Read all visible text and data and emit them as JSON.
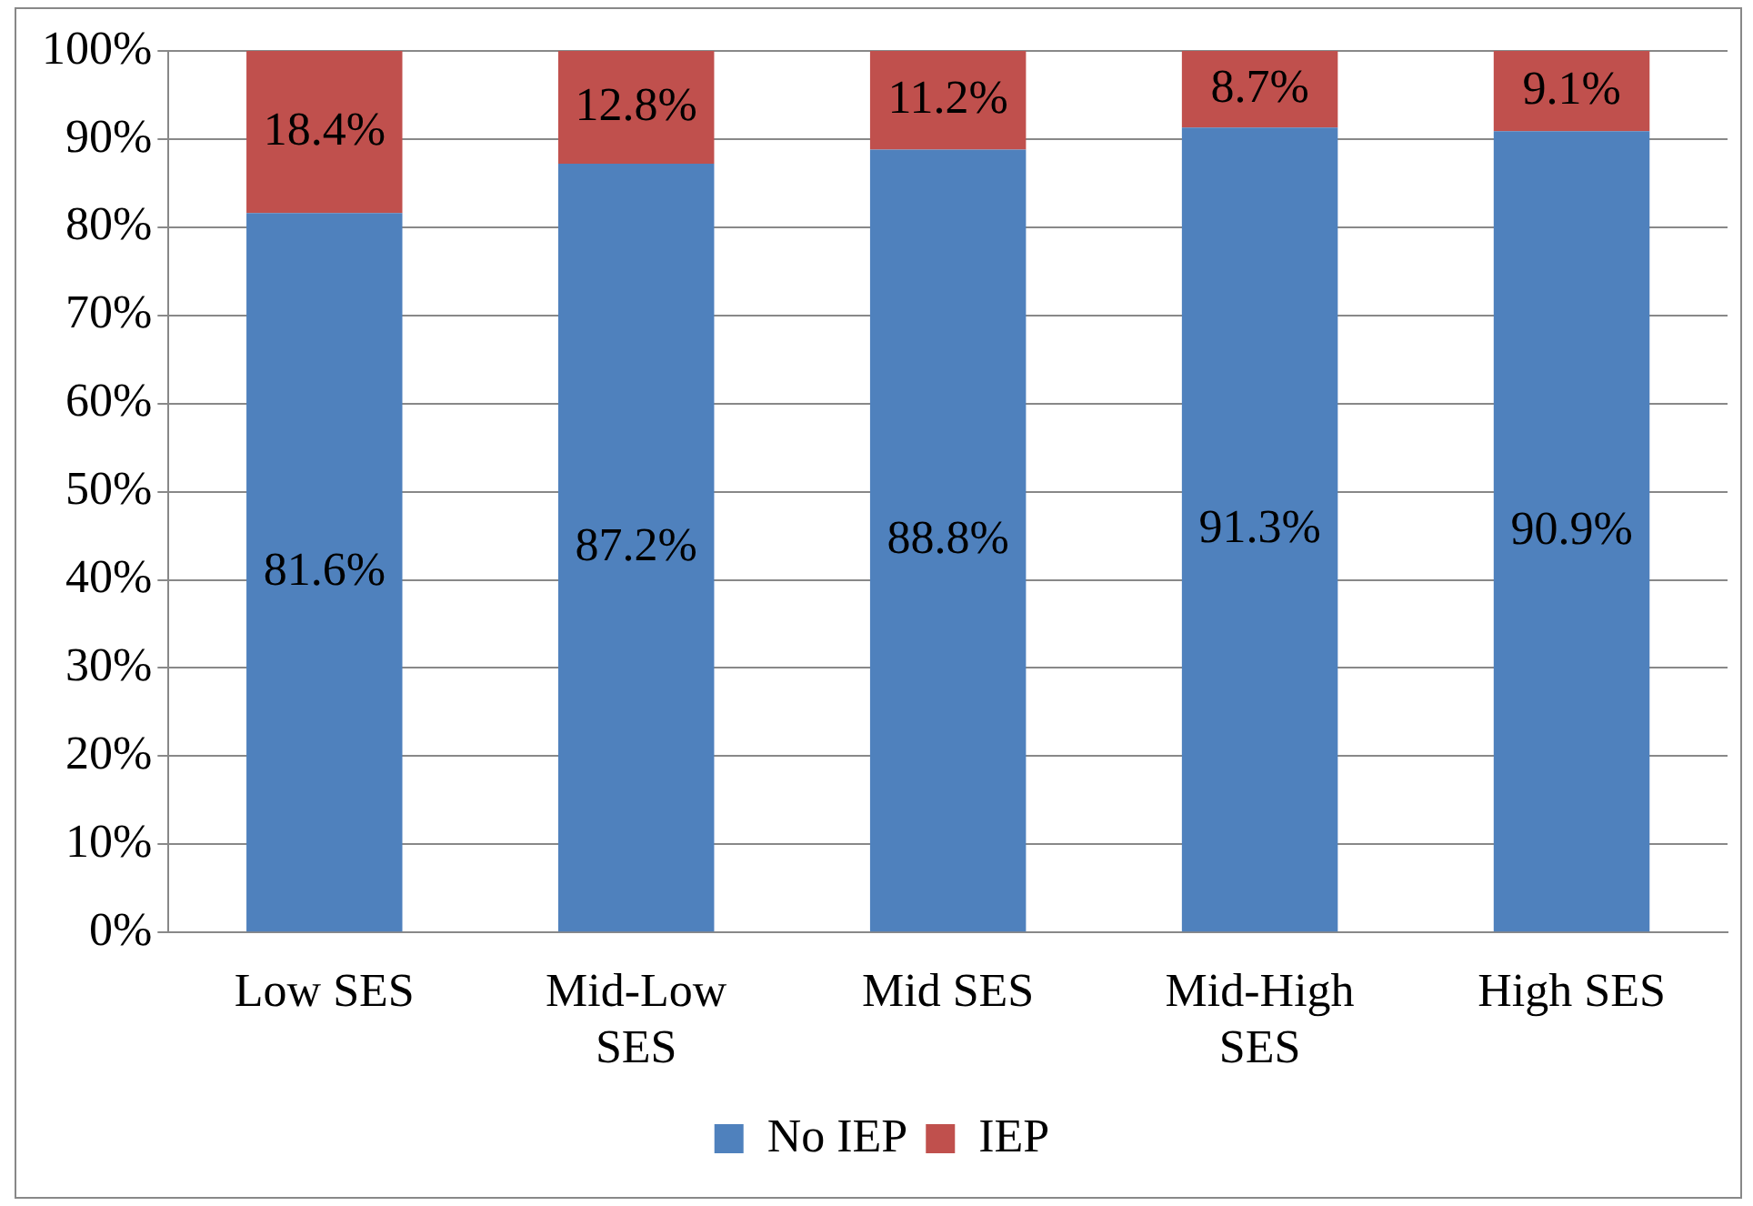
{
  "chart_data": {
    "type": "bar",
    "stacked": true,
    "categories": [
      "Low SES",
      "Mid-Low SES",
      "Mid SES",
      "Mid-High SES",
      "High SES"
    ],
    "series": [
      {
        "name": "No IEP",
        "color": "#4f81bd",
        "values": [
          81.6,
          87.2,
          88.8,
          91.3,
          90.9
        ],
        "value_labels": [
          "81.6%",
          "87.2%",
          "88.8%",
          "91.3%",
          "90.9%"
        ]
      },
      {
        "name": "IEP",
        "color": "#c0504d",
        "values": [
          18.4,
          12.8,
          11.2,
          8.7,
          9.1
        ],
        "value_labels": [
          "18.4%",
          "12.8%",
          "11.2%",
          "8.7%",
          "9.1%"
        ]
      }
    ],
    "ylim": [
      0,
      100
    ],
    "yticks": [
      {
        "value": 0,
        "label": "0%"
      },
      {
        "value": 10,
        "label": "10%"
      },
      {
        "value": 20,
        "label": "20%"
      },
      {
        "value": 30,
        "label": "30%"
      },
      {
        "value": 40,
        "label": "40%"
      },
      {
        "value": 50,
        "label": "50%"
      },
      {
        "value": 60,
        "label": "60%"
      },
      {
        "value": 70,
        "label": "70%"
      },
      {
        "value": 80,
        "label": "80%"
      },
      {
        "value": 90,
        "label": "90%"
      },
      {
        "value": 100,
        "label": "100%"
      }
    ],
    "grid": "y",
    "legend": "bottom"
  }
}
